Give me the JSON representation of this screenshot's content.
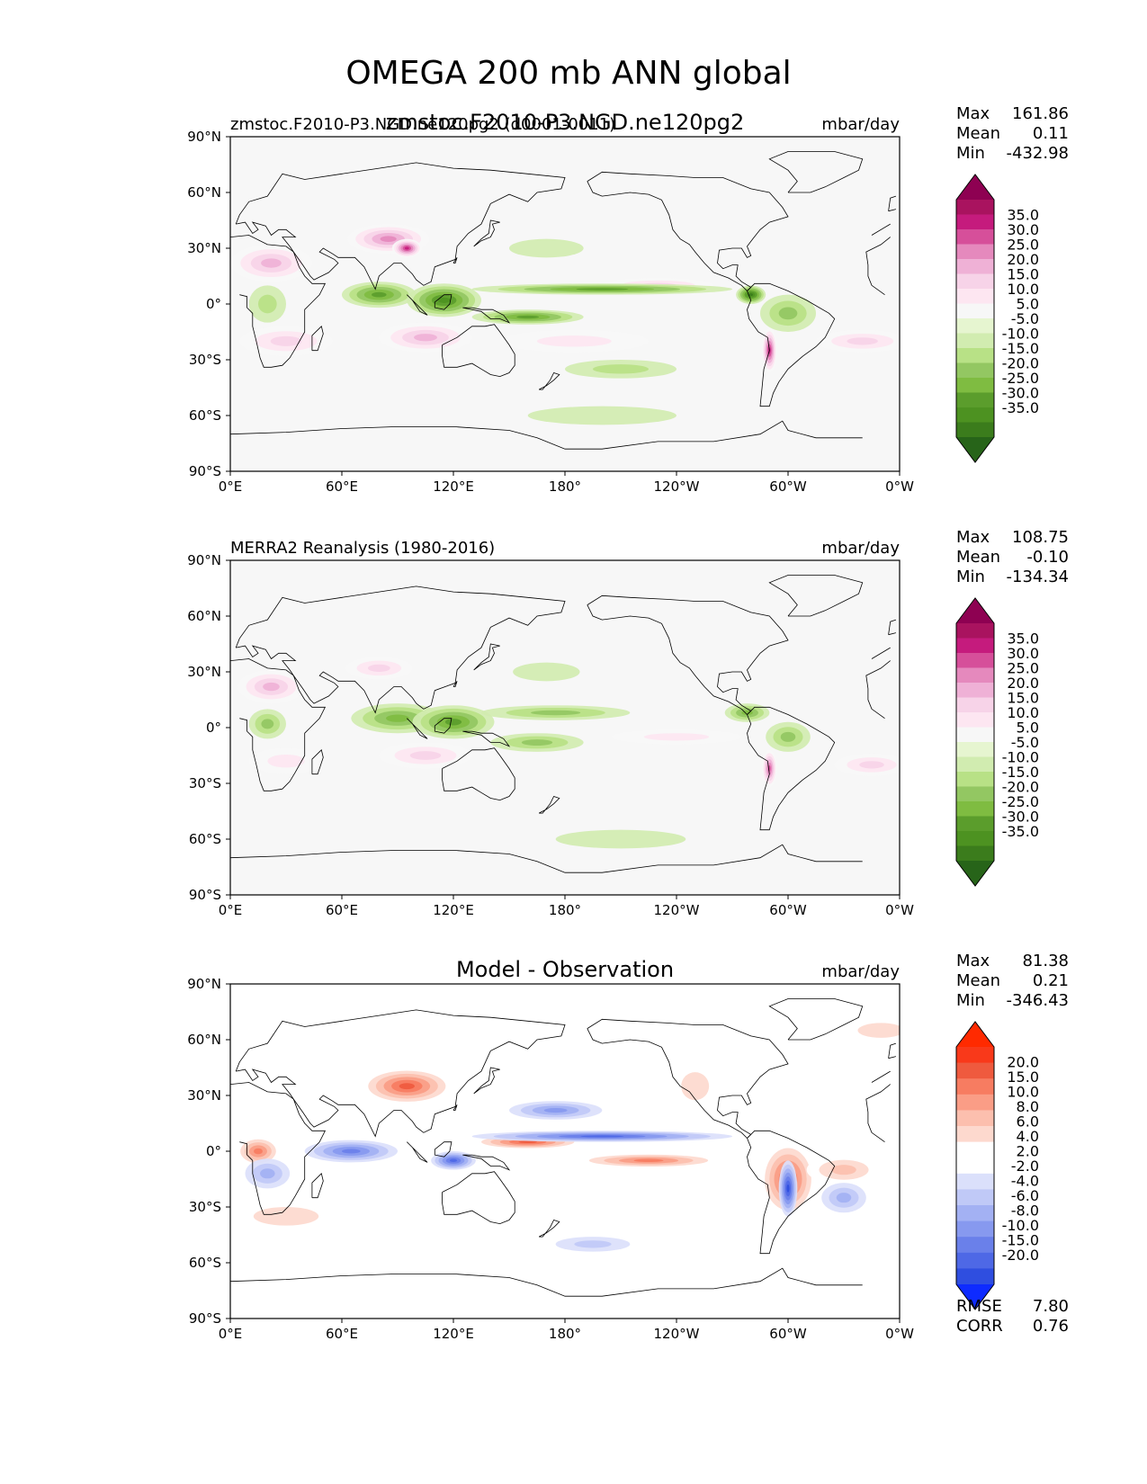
{
  "title": "OMEGA 200 mb ANN global",
  "chart_data": [
    {
      "type": "heatmap",
      "title": "zmstoc.F2010-P3.NGD.ne120pg2",
      "left_label": "zmstoc.F2010-P3.NGD.ne120pg2 (d0001-0011)",
      "units": "mbar/day",
      "stats": {
        "max_label": "Max",
        "max": "161.86",
        "mean_label": "Mean",
        "mean": "0.11",
        "min_label": "Min",
        "min": "-432.98"
      },
      "x_ticks": [
        "0°E",
        "60°E",
        "120°E",
        "180°",
        "120°W",
        "60°W",
        "0°W"
      ],
      "y_ticks": [
        "90°N",
        "60°N",
        "30°N",
        "0°",
        "30°S",
        "60°S",
        "90°S"
      ],
      "xlim": [
        0,
        360
      ],
      "ylim": [
        -90,
        90
      ],
      "colorbar": {
        "levels": [
          "35.0",
          "30.0",
          "25.0",
          "20.0",
          "15.0",
          "10.0",
          "5.0",
          "-5.0",
          "-10.0",
          "-15.0",
          "-20.0",
          "-25.0",
          "-30.0",
          "-35.0"
        ],
        "colors": [
          "#8e0152",
          "#a9135f",
          "#c51b7d",
          "#d64f9a",
          "#e589bd",
          "#efb1d6",
          "#f7d3e8",
          "#fde6f1",
          "#f7f7f7",
          "#e6f5d0",
          "#d1ecb0",
          "#b8e186",
          "#93c762",
          "#7fbc41",
          "#5b9d2c",
          "#4d9221",
          "#3b7c1c",
          "#276419"
        ]
      },
      "features": [
        {
          "kind": "pos",
          "lon": 22,
          "lat": 22,
          "rx": 22,
          "ry": 10,
          "level": 4
        },
        {
          "kind": "pos",
          "lon": 85,
          "lat": 35,
          "rx": 22,
          "ry": 8,
          "level": 5
        },
        {
          "kind": "pos",
          "lon": 95,
          "lat": 30,
          "rx": 8,
          "ry": 5,
          "level": 7
        },
        {
          "kind": "pos",
          "lon": 105,
          "lat": -18,
          "rx": 25,
          "ry": 8,
          "level": 4
        },
        {
          "kind": "pos",
          "lon": 185,
          "lat": -20,
          "rx": 40,
          "ry": 6,
          "level": 2
        },
        {
          "kind": "pos",
          "lon": 30,
          "lat": -20,
          "rx": 25,
          "ry": 8,
          "level": 3
        },
        {
          "kind": "pos",
          "lon": 290,
          "lat": -25,
          "rx": 4,
          "ry": 12,
          "level": 7
        },
        {
          "kind": "pos",
          "lon": 340,
          "lat": -20,
          "rx": 25,
          "ry": 6,
          "level": 3
        },
        {
          "kind": "pos",
          "lon": 230,
          "lat": 10,
          "rx": 30,
          "ry": 4,
          "level": 3
        },
        {
          "kind": "neg",
          "lon": 80,
          "lat": 5,
          "rx": 20,
          "ry": 7,
          "level": 5
        },
        {
          "kind": "neg",
          "lon": 115,
          "lat": 2,
          "rx": 20,
          "ry": 9,
          "level": 6
        },
        {
          "kind": "neg",
          "lon": 160,
          "lat": -7,
          "rx": 30,
          "ry": 4,
          "level": 5
        },
        {
          "kind": "neg",
          "lon": 200,
          "lat": 8,
          "rx": 70,
          "ry": 3,
          "level": 5
        },
        {
          "kind": "neg",
          "lon": 280,
          "lat": 5,
          "rx": 8,
          "ry": 5,
          "level": 7
        },
        {
          "kind": "neg",
          "lon": 300,
          "lat": -5,
          "rx": 15,
          "ry": 10,
          "level": 3
        },
        {
          "kind": "neg",
          "lon": 20,
          "lat": 0,
          "rx": 10,
          "ry": 10,
          "level": 2
        },
        {
          "kind": "neg",
          "lon": 170,
          "lat": 30,
          "rx": 20,
          "ry": 5,
          "level": 1
        },
        {
          "kind": "neg",
          "lon": 210,
          "lat": -35,
          "rx": 30,
          "ry": 5,
          "level": 2
        },
        {
          "kind": "neg",
          "lon": 200,
          "lat": -60,
          "rx": 40,
          "ry": 5,
          "level": 1
        }
      ]
    },
    {
      "type": "heatmap",
      "title": "",
      "left_label": "MERRA2 Reanalysis (1980-2016)",
      "units": "mbar/day",
      "stats": {
        "max_label": "Max",
        "max": "108.75",
        "mean_label": "Mean",
        "mean": "-0.10",
        "min_label": "Min",
        "min": "-134.34"
      },
      "x_ticks": [
        "0°E",
        "60°E",
        "120°E",
        "180°",
        "120°W",
        "60°W",
        "0°W"
      ],
      "y_ticks": [
        "90°N",
        "60°N",
        "30°N",
        "0°",
        "30°S",
        "60°S",
        "90°S"
      ],
      "xlim": [
        0,
        360
      ],
      "ylim": [
        -90,
        90
      ],
      "colorbar": {
        "levels": [
          "35.0",
          "30.0",
          "25.0",
          "20.0",
          "15.0",
          "10.0",
          "5.0",
          "-5.0",
          "-10.0",
          "-15.0",
          "-20.0",
          "-25.0",
          "-30.0",
          "-35.0"
        ],
        "colors": [
          "#8e0152",
          "#a9135f",
          "#c51b7d",
          "#d64f9a",
          "#e589bd",
          "#efb1d6",
          "#f7d3e8",
          "#fde6f1",
          "#f7f7f7",
          "#e6f5d0",
          "#d1ecb0",
          "#b8e186",
          "#93c762",
          "#7fbc41",
          "#5b9d2c",
          "#4d9221",
          "#3b7c1c",
          "#276419"
        ]
      },
      "features": [
        {
          "kind": "pos",
          "lon": 22,
          "lat": 22,
          "rx": 18,
          "ry": 9,
          "level": 4
        },
        {
          "kind": "pos",
          "lon": 80,
          "lat": 32,
          "rx": 18,
          "ry": 6,
          "level": 3
        },
        {
          "kind": "pos",
          "lon": 105,
          "lat": -15,
          "rx": 25,
          "ry": 7,
          "level": 3
        },
        {
          "kind": "pos",
          "lon": 30,
          "lat": -18,
          "rx": 20,
          "ry": 7,
          "level": 2
        },
        {
          "kind": "pos",
          "lon": 290,
          "lat": -22,
          "rx": 4,
          "ry": 10,
          "level": 6
        },
        {
          "kind": "pos",
          "lon": 345,
          "lat": -20,
          "rx": 20,
          "ry": 6,
          "level": 3
        },
        {
          "kind": "pos",
          "lon": 240,
          "lat": -5,
          "rx": 35,
          "ry": 4,
          "level": 2
        },
        {
          "kind": "neg",
          "lon": 90,
          "lat": 5,
          "rx": 25,
          "ry": 8,
          "level": 4
        },
        {
          "kind": "neg",
          "lon": 120,
          "lat": 3,
          "rx": 22,
          "ry": 9,
          "level": 5
        },
        {
          "kind": "neg",
          "lon": 165,
          "lat": -8,
          "rx": 25,
          "ry": 5,
          "level": 3
        },
        {
          "kind": "neg",
          "lon": 175,
          "lat": 8,
          "rx": 40,
          "ry": 4,
          "level": 3
        },
        {
          "kind": "neg",
          "lon": 278,
          "lat": 8,
          "rx": 12,
          "ry": 5,
          "level": 4
        },
        {
          "kind": "neg",
          "lon": 300,
          "lat": -5,
          "rx": 12,
          "ry": 8,
          "level": 3
        },
        {
          "kind": "neg",
          "lon": 20,
          "lat": 2,
          "rx": 10,
          "ry": 8,
          "level": 3
        },
        {
          "kind": "neg",
          "lon": 170,
          "lat": 30,
          "rx": 18,
          "ry": 5,
          "level": 1
        },
        {
          "kind": "neg",
          "lon": 210,
          "lat": -60,
          "rx": 35,
          "ry": 5,
          "level": 1
        }
      ]
    },
    {
      "type": "heatmap",
      "title": "Model - Observation",
      "left_label": "",
      "units": "mbar/day",
      "stats": {
        "max_label": "Max",
        "max": "81.38",
        "mean_label": "Mean",
        "mean": "0.21",
        "min_label": "Min",
        "min": "-346.43"
      },
      "metrics": {
        "rmse_label": "RMSE",
        "rmse": "7.80",
        "corr_label": "CORR",
        "corr": "0.76"
      },
      "x_ticks": [
        "0°E",
        "60°E",
        "120°E",
        "180°",
        "120°W",
        "60°W",
        "0°W"
      ],
      "y_ticks": [
        "90°N",
        "60°N",
        "30°N",
        "0°",
        "30°S",
        "60°S",
        "90°S"
      ],
      "xlim": [
        0,
        360
      ],
      "ylim": [
        -90,
        90
      ],
      "colorbar": {
        "levels": [
          "20.0",
          "15.0",
          "10.0",
          "8.0",
          "6.0",
          "4.0",
          "2.0",
          "-2.0",
          "-4.0",
          "-6.0",
          "-8.0",
          "-10.0",
          "-15.0",
          "-20.0"
        ],
        "colors": [
          "#ff2a00",
          "#f9391a",
          "#ef5a3e",
          "#f77c61",
          "#fa9d86",
          "#fcbfae",
          "#fdd9ce",
          "#ffffff",
          "#ffffff",
          "#dbe0fb",
          "#c0c9f7",
          "#a3b1f3",
          "#8799ef",
          "#6a80ea",
          "#4e68e6",
          "#2f4ee0",
          "#0e2bff"
        ]
      },
      "features": [
        {
          "kind": "pos",
          "lon": 95,
          "lat": 35,
          "rx": 25,
          "ry": 10,
          "level": 6
        },
        {
          "kind": "pos",
          "lon": 30,
          "lat": -35,
          "rx": 35,
          "ry": 10,
          "level": 2
        },
        {
          "kind": "pos",
          "lon": 15,
          "lat": 0,
          "rx": 12,
          "ry": 8,
          "level": 5
        },
        {
          "kind": "pos",
          "lon": 160,
          "lat": 5,
          "rx": 30,
          "ry": 4,
          "level": 6
        },
        {
          "kind": "pos",
          "lon": 225,
          "lat": -5,
          "rx": 40,
          "ry": 4,
          "level": 5
        },
        {
          "kind": "pos",
          "lon": 300,
          "lat": -15,
          "rx": 15,
          "ry": 20,
          "level": 6
        },
        {
          "kind": "pos",
          "lon": 330,
          "lat": -10,
          "rx": 20,
          "ry": 8,
          "level": 3
        },
        {
          "kind": "pos",
          "lon": 250,
          "lat": 35,
          "rx": 15,
          "ry": 15,
          "level": 2
        },
        {
          "kind": "pos",
          "lon": 350,
          "lat": 65,
          "rx": 25,
          "ry": 8,
          "level": 2
        },
        {
          "kind": "neg",
          "lon": 65,
          "lat": 0,
          "rx": 25,
          "ry": 6,
          "level": 5
        },
        {
          "kind": "neg",
          "lon": 200,
          "lat": 8,
          "rx": 70,
          "ry": 3,
          "level": 6
        },
        {
          "kind": "neg",
          "lon": 120,
          "lat": -5,
          "rx": 12,
          "ry": 5,
          "level": 6
        },
        {
          "kind": "neg",
          "lon": 175,
          "lat": 22,
          "rx": 25,
          "ry": 5,
          "level": 4
        },
        {
          "kind": "neg",
          "lon": 300,
          "lat": -20,
          "rx": 5,
          "ry": 15,
          "level": 7
        },
        {
          "kind": "neg",
          "lon": 20,
          "lat": -12,
          "rx": 12,
          "ry": 8,
          "level": 3
        },
        {
          "kind": "neg",
          "lon": 330,
          "lat": -25,
          "rx": 12,
          "ry": 8,
          "level": 3
        },
        {
          "kind": "neg",
          "lon": 195,
          "lat": -50,
          "rx": 20,
          "ry": 4,
          "level": 2
        }
      ]
    }
  ]
}
